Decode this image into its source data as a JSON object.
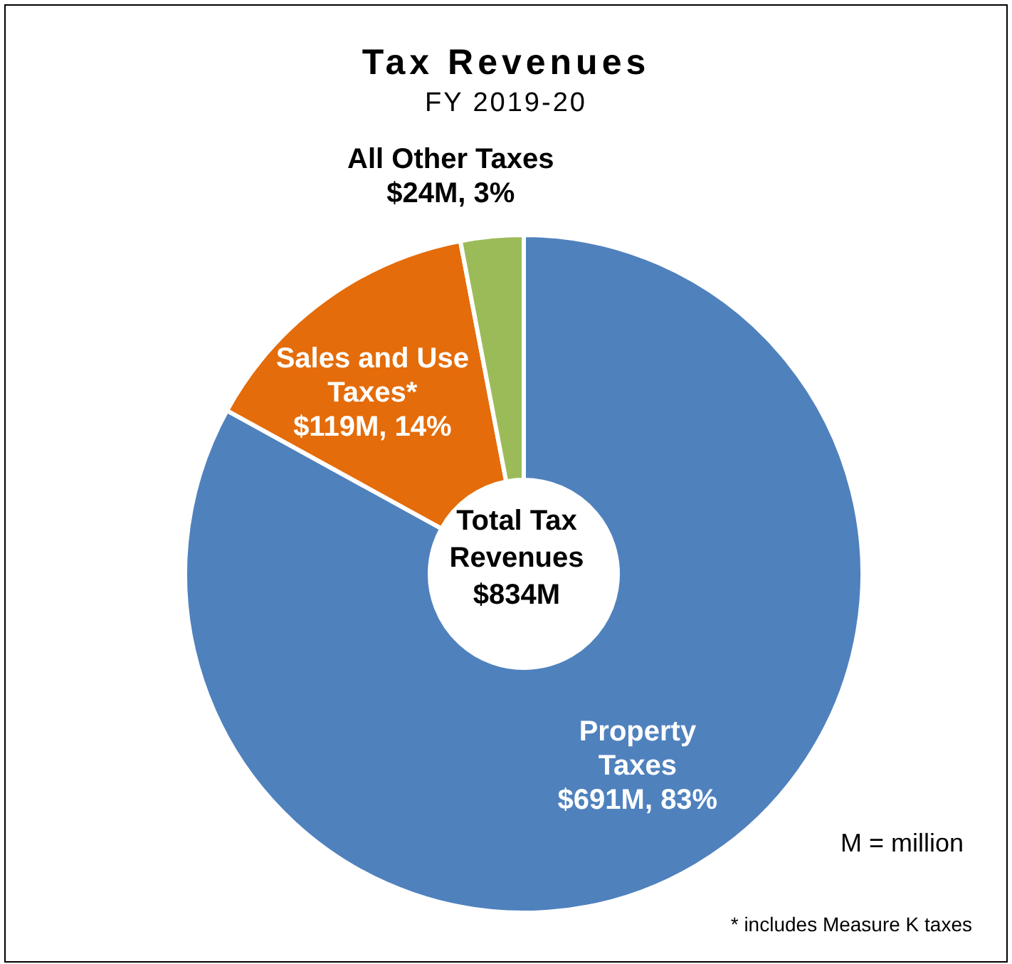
{
  "chart_data": {
    "type": "donut",
    "title": "Tax Revenues",
    "subtitle": "FY 2019-20",
    "categories": [
      "Property Taxes",
      "Sales and Use Taxes*",
      "All Other Taxes"
    ],
    "values": [
      83,
      14,
      3
    ],
    "value_labels": [
      "$691M, 83%",
      "$119M, 14%",
      "$24M, 3%"
    ],
    "colors": [
      "#4f81bd",
      "#e46c0a",
      "#9bbb59"
    ],
    "annotations": [
      "Total Tax Revenues $834M",
      "M = million",
      "* includes Measure K taxes"
    ],
    "legend": false
  }
}
